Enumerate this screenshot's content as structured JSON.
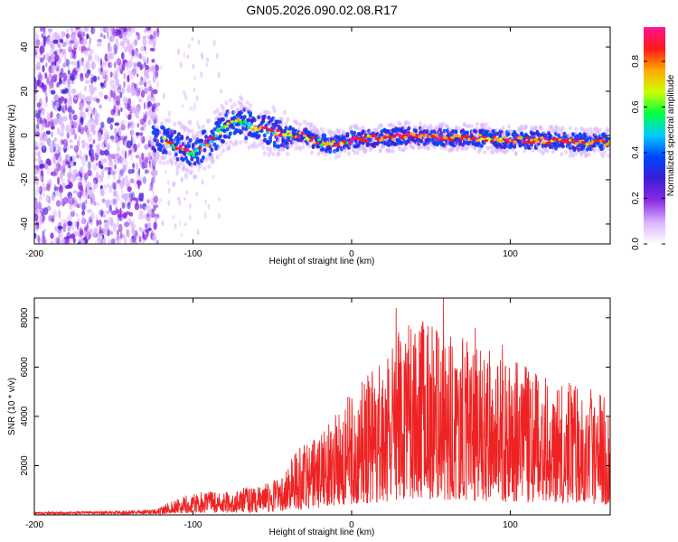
{
  "title": "GN05.2026.090.02.08.R17",
  "colors": {
    "snr_line": "#ee2222",
    "axis": "#000000",
    "colormap": [
      "#ffffff",
      "#d9b3ff",
      "#8a2be2",
      "#3b1fd6",
      "#0044ff",
      "#00ccff",
      "#00ff44",
      "#ccff00",
      "#ffaa00",
      "#ff1a1a",
      "#ff1493"
    ]
  },
  "chart_data": [
    {
      "type": "heatmap",
      "name": "spectrogram",
      "xlabel": "Height of straight line (km)",
      "ylabel": "Frequency (Hz)",
      "xlim": [
        -200,
        163
      ],
      "ylim": [
        -49,
        49
      ],
      "xticks": [
        -200,
        -100,
        0,
        100
      ],
      "yticks": [
        -40,
        -20,
        0,
        20,
        40
      ],
      "colorbar": {
        "label": "Normalized spectral amplitude",
        "range": [
          0,
          0.95
        ],
        "ticks": [
          "0.0",
          "0.2",
          "0.4",
          "0.6",
          "0.8"
        ]
      },
      "ridge_center_hz": [
        [
          -120,
          -2
        ],
        [
          -110,
          -5
        ],
        [
          -100,
          -8
        ],
        [
          -90,
          -3
        ],
        [
          -80,
          4
        ],
        [
          -72,
          7
        ],
        [
          -60,
          3
        ],
        [
          -45,
          1
        ],
        [
          -30,
          0
        ],
        [
          -20,
          -3
        ],
        [
          -10,
          -4
        ],
        [
          0,
          -2
        ],
        [
          20,
          -1
        ],
        [
          40,
          0
        ],
        [
          60,
          -1
        ],
        [
          80,
          -1
        ],
        [
          100,
          -2
        ],
        [
          120,
          -2
        ],
        [
          140,
          -3
        ],
        [
          163,
          -3
        ]
      ]
    },
    {
      "type": "line",
      "name": "snr",
      "xlabel": "Height of straight line (km)",
      "ylabel": "SNR (10 * v/v)",
      "xlim": [
        -200,
        163
      ],
      "ylim": [
        0,
        8800
      ],
      "xticks": [
        -200,
        -100,
        0,
        100
      ],
      "yticks": [
        2000,
        4000,
        6000,
        8000
      ],
      "envelope": [
        [
          -200,
          120
        ],
        [
          -150,
          160
        ],
        [
          -125,
          220
        ],
        [
          -115,
          500
        ],
        [
          -100,
          900
        ],
        [
          -80,
          1000
        ],
        [
          -60,
          1200
        ],
        [
          -45,
          1500
        ],
        [
          -35,
          2800
        ],
        [
          -20,
          3200
        ],
        [
          -10,
          4200
        ],
        [
          0,
          5200
        ],
        [
          10,
          5800
        ],
        [
          20,
          6500
        ],
        [
          30,
          7800
        ],
        [
          45,
          8000
        ],
        [
          60,
          7700
        ],
        [
          80,
          7000
        ],
        [
          100,
          6300
        ],
        [
          120,
          5800
        ],
        [
          140,
          5300
        ],
        [
          163,
          4900
        ]
      ],
      "peaks": [
        [
          28,
          8400
        ],
        [
          58,
          8800
        ],
        [
          95,
          6900
        ],
        [
          78,
          7600
        ]
      ]
    }
  ]
}
